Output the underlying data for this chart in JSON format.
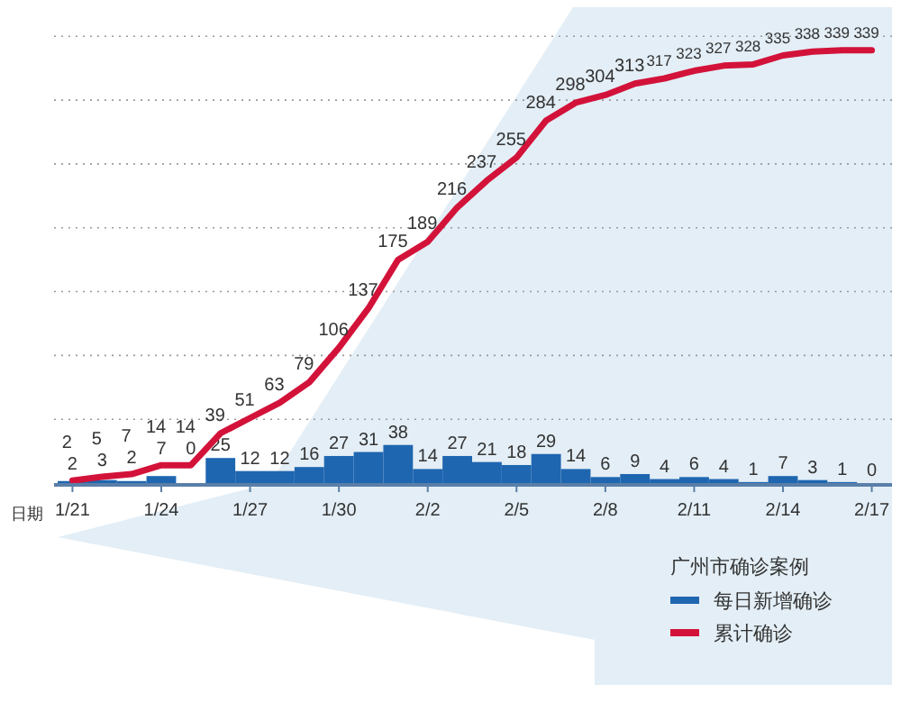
{
  "chart_data": {
    "type": "bar",
    "xlabel": "日期",
    "legend_title": "广州市确诊案例",
    "legend": "bottom right",
    "data_labels": true,
    "grid": "y",
    "tick_labels": "x",
    "relative": false,
    "categories": [
      "1/21",
      null,
      null,
      "1/24",
      null,
      null,
      "1/27",
      null,
      null,
      "1/30",
      null,
      null,
      "2/2",
      null,
      null,
      "2/5",
      null,
      null,
      "2/8",
      null,
      null,
      "2/11",
      null,
      null,
      "2/14",
      null,
      null,
      "2/17"
    ],
    "yticks": [
      {
        "value": 50,
        "label": null
      },
      {
        "value": 100,
        "label": null
      },
      {
        "value": 150,
        "label": null
      },
      {
        "value": 200,
        "label": null
      },
      {
        "value": 250,
        "label": null
      },
      {
        "value": 300,
        "label": null
      },
      {
        "value": 350,
        "label": null
      }
    ],
    "series": [
      {
        "name": "每日新增确诊",
        "axis": "y2",
        "color": "#1f66b0",
        "values": [
          2,
          3,
          2,
          7,
          0,
          25,
          12,
          12,
          16,
          27,
          31,
          38,
          14,
          27,
          21,
          18,
          29,
          14,
          6,
          9,
          4,
          6,
          4,
          1,
          7,
          3,
          1,
          0
        ]
      },
      {
        "name": "累计确诊",
        "type": "line",
        "axis": "y",
        "color": "#d3123a",
        "values": [
          2,
          5,
          7,
          14,
          14,
          39,
          51,
          63,
          79,
          106,
          137,
          175,
          189,
          216,
          237,
          255,
          284,
          298,
          304,
          313,
          317,
          323,
          327,
          328,
          335,
          338,
          339,
          339
        ]
      }
    ]
  }
}
